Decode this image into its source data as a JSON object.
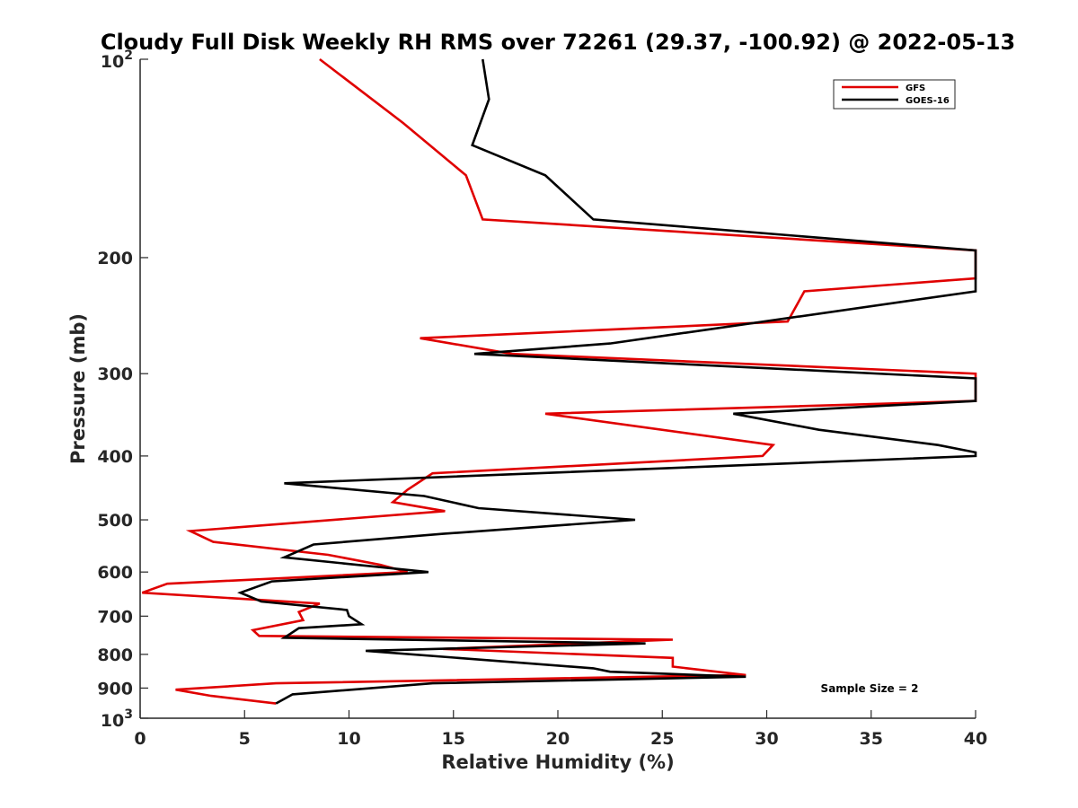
{
  "chart_data": {
    "type": "line",
    "title": "Cloudy Full Disk Weekly RH RMS over 72261 (29.37, -100.92) @ 2022-05-13",
    "xlabel": "Relative Humidity (%)",
    "ylabel": "Pressure (mb)",
    "xlim": [
      0,
      40
    ],
    "ylim": [
      100,
      1000
    ],
    "y_scale": "log",
    "y_reversed": true,
    "x_ticks": [
      0,
      5,
      10,
      15,
      20,
      25,
      30,
      35,
      40
    ],
    "x_tick_labels": [
      "0",
      "5",
      "10",
      "15",
      "20",
      "25",
      "30",
      "35",
      "40"
    ],
    "y_ticks": [
      200,
      300,
      400,
      500,
      600,
      700,
      800,
      900
    ],
    "y_tick_labels": [
      "200",
      "300",
      "400",
      "500",
      "600",
      "700",
      "800",
      "900"
    ],
    "y_end_labels": [
      {
        "value": 100,
        "base": "10",
        "exp": "2"
      },
      {
        "value": 1000,
        "base": "10",
        "exp": "3"
      }
    ],
    "grid": false,
    "legend_position": "top-right",
    "annotation": "Sample Size = 2",
    "series": [
      {
        "name": "GFS",
        "color": "#e00000",
        "points": [
          [
            8.6,
            100
          ],
          [
            12.6,
            125
          ],
          [
            15.6,
            150
          ],
          [
            16.4,
            175
          ],
          [
            40.0,
            195
          ],
          [
            40.0,
            215
          ],
          [
            31.8,
            225
          ],
          [
            31.0,
            250
          ],
          [
            13.4,
            265
          ],
          [
            17.8,
            280
          ],
          [
            40.0,
            300
          ],
          [
            40.0,
            330
          ],
          [
            19.4,
            345
          ],
          [
            30.3,
            385
          ],
          [
            29.8,
            400
          ],
          [
            14.0,
            425
          ],
          [
            12.8,
            450
          ],
          [
            12.1,
            470
          ],
          [
            14.6,
            485
          ],
          [
            2.4,
            520
          ],
          [
            3.5,
            540
          ],
          [
            9.0,
            565
          ],
          [
            11.5,
            585
          ],
          [
            12.8,
            600
          ],
          [
            1.3,
            625
          ],
          [
            0.1,
            645
          ],
          [
            8.6,
            670
          ],
          [
            7.6,
            690
          ],
          [
            7.8,
            710
          ],
          [
            5.4,
            735
          ],
          [
            5.7,
            750
          ],
          [
            25.5,
            760
          ],
          [
            14.5,
            785
          ],
          [
            25.5,
            810
          ],
          [
            25.5,
            835
          ],
          [
            29.0,
            860
          ],
          [
            6.5,
            885
          ],
          [
            1.7,
            905
          ],
          [
            3.4,
            925
          ],
          [
            6.5,
            950
          ]
        ]
      },
      {
        "name": "GOES-16",
        "color": "#000000",
        "points": [
          [
            16.4,
            100
          ],
          [
            16.7,
            115
          ],
          [
            15.9,
            135
          ],
          [
            19.4,
            150
          ],
          [
            21.7,
            175
          ],
          [
            40.0,
            195
          ],
          [
            40.0,
            225
          ],
          [
            22.5,
            270
          ],
          [
            16.0,
            280
          ],
          [
            40.0,
            305
          ],
          [
            40.0,
            330
          ],
          [
            28.4,
            345
          ],
          [
            32.5,
            365
          ],
          [
            38.2,
            385
          ],
          [
            40.0,
            395
          ],
          [
            40.0,
            400
          ],
          [
            6.9,
            440
          ],
          [
            13.6,
            460
          ],
          [
            16.2,
            480
          ],
          [
            23.7,
            500
          ],
          [
            14.5,
            525
          ],
          [
            8.3,
            545
          ],
          [
            6.9,
            570
          ],
          [
            13.8,
            600
          ],
          [
            6.3,
            620
          ],
          [
            4.8,
            645
          ],
          [
            5.8,
            665
          ],
          [
            9.9,
            685
          ],
          [
            10.0,
            700
          ],
          [
            10.6,
            720
          ],
          [
            7.6,
            730
          ],
          [
            6.9,
            755
          ],
          [
            24.2,
            770
          ],
          [
            10.8,
            790
          ],
          [
            21.7,
            840
          ],
          [
            22.5,
            850
          ],
          [
            29.0,
            865
          ],
          [
            14.0,
            885
          ],
          [
            7.3,
            920
          ],
          [
            6.5,
            950
          ]
        ]
      }
    ]
  }
}
